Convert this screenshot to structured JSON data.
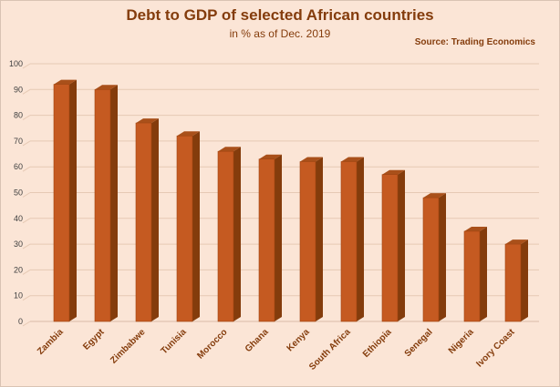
{
  "chart_data": {
    "type": "bar",
    "title": "Debt to GDP of selected African countries",
    "subtitle": "in % as of Dec. 2019",
    "source": "Source: Trading Economics",
    "categories": [
      "Zambia",
      "Egypt",
      "Zimbabwe",
      "Tunisia",
      "Morocco",
      "Ghana",
      "Kenya",
      "South Africa",
      "Ethiopia",
      "Senegal",
      "Nigeria",
      "Ivory Coast"
    ],
    "values": [
      92,
      90,
      77,
      72,
      66,
      63,
      62,
      62,
      57,
      48,
      35,
      30
    ],
    "ylim": [
      0,
      100
    ],
    "yticks": [
      "0",
      "10",
      "20",
      "30",
      "40",
      "50",
      "60",
      "70",
      "80",
      "90",
      "100"
    ],
    "xlabel": "",
    "ylabel": "",
    "grid": true,
    "colors": {
      "bar_front": "#c55a21",
      "bar_side": "#843c0c",
      "bar_top": "#a9501a",
      "text": "#843c0c"
    }
  }
}
